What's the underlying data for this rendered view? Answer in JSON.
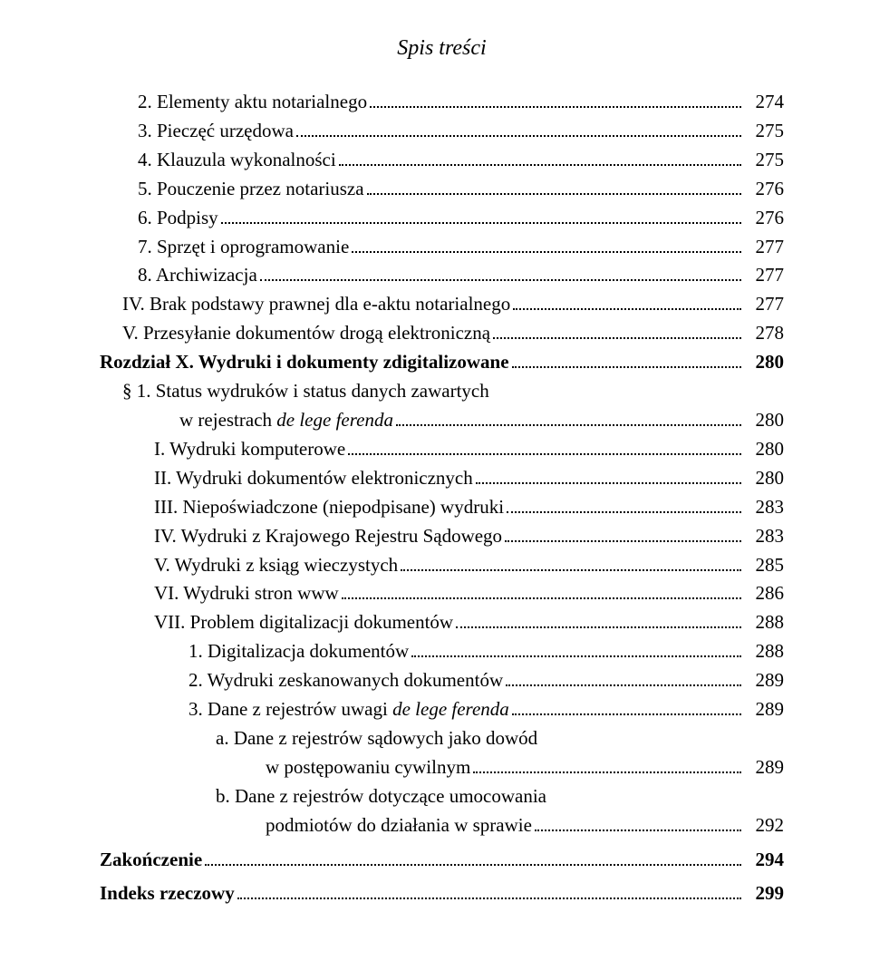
{
  "title": "Spis treści",
  "entries": [
    {
      "label": "2. Elementy aktu notarialnego",
      "page": "274",
      "indent": "ind1",
      "style": ""
    },
    {
      "label": "3. Pieczęć urzędowa",
      "page": "275",
      "indent": "ind1",
      "style": ""
    },
    {
      "label": "4. Klauzula wykonalności",
      "page": "275",
      "indent": "ind1",
      "style": ""
    },
    {
      "label": "5. Pouczenie przez notariusza",
      "page": "276",
      "indent": "ind1",
      "style": ""
    },
    {
      "label": "6. Podpisy",
      "page": "276",
      "indent": "ind1",
      "style": ""
    },
    {
      "label": "7. Sprzęt i oprogramowanie",
      "page": "277",
      "indent": "ind1",
      "style": ""
    },
    {
      "label": "8. Archiwizacja",
      "page": "277",
      "indent": "ind1",
      "style": ""
    },
    {
      "label": "IV. Brak podstawy prawnej dla e-aktu notarialnego",
      "page": "277",
      "indent": "ind2",
      "style": ""
    },
    {
      "label": "V. Przesyłanie dokumentów drogą elektroniczną",
      "page": "278",
      "indent": "ind2",
      "style": ""
    },
    {
      "label": "Rozdział X. Wydruki i dokumenty zdigitalizowane",
      "page": "280",
      "indent": "",
      "style": "bold"
    },
    {
      "label": "§ 1. Status wydruków i status danych zawartych",
      "cont": "w rejestrach de lege ferenda",
      "contItalicPart": "de lege ferenda",
      "contPlain": "w rejestrach ",
      "page": "280",
      "indent": "ind2",
      "style": ""
    },
    {
      "label": "I. Wydruki komputerowe",
      "page": "280",
      "indent": "ind2b",
      "style": ""
    },
    {
      "label": "II. Wydruki dokumentów elektronicznych",
      "page": "280",
      "indent": "ind2b",
      "style": ""
    },
    {
      "label": "III. Niepoświadczone (niepodpisane) wydruki",
      "page": "283",
      "indent": "ind2b",
      "style": ""
    },
    {
      "label": "IV. Wydruki z Krajowego Rejestru Sądowego",
      "page": "283",
      "indent": "ind2b",
      "style": ""
    },
    {
      "label": "V. Wydruki z ksiąg wieczystych",
      "page": "285",
      "indent": "ind2b",
      "style": ""
    },
    {
      "label": "VI. Wydruki stron www",
      "page": "286",
      "indent": "ind2b",
      "style": ""
    },
    {
      "label": "VII. Problem digitalizacji dokumentów",
      "page": "288",
      "indent": "ind2b",
      "style": ""
    },
    {
      "label": "1. Digitalizacja dokumentów",
      "page": "288",
      "indent": "ind4",
      "style": ""
    },
    {
      "label": "2. Wydruki zeskanowanych dokumentów",
      "page": "289",
      "indent": "ind4",
      "style": ""
    },
    {
      "labelPlain": "3. Dane z rejestrów uwagi ",
      "labelItalic": "de lege ferenda",
      "page": "289",
      "indent": "ind4",
      "style": ""
    },
    {
      "label": "a. Dane z rejestrów sądowych jako dowód",
      "cont": "w postępowaniu cywilnym",
      "page": "289",
      "indent": "ind5",
      "style": ""
    },
    {
      "label": "b. Dane z rejestrów dotyczące umocowania",
      "cont": "podmiotów do działania w sprawie",
      "page": "292",
      "indent": "ind5",
      "style": ""
    },
    {
      "label": "Zakończenie",
      "page": "294",
      "indent": "",
      "style": "bold mt"
    },
    {
      "label": "Indeks rzeczowy",
      "page": "299",
      "indent": "",
      "style": "bold mt"
    }
  ]
}
